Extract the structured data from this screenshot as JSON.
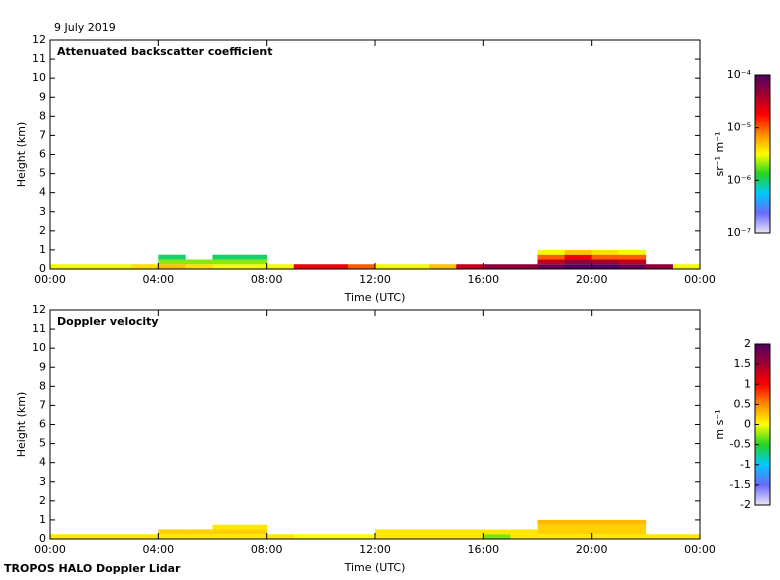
{
  "date": "9 July 2019",
  "footer": "TROPOS HALO Doppler Lidar",
  "chart_data": [
    {
      "type": "heatmap",
      "title": "Attenuated backscatter coefficient",
      "xlabel": "Time (UTC)",
      "ylabel": "Height (km)",
      "colorbar_label": "sr⁻¹ m⁻¹",
      "xlim": [
        0,
        24
      ],
      "xticks": [
        {
          "value": 0,
          "label": "00:00"
        },
        {
          "value": 4,
          "label": "04:00"
        },
        {
          "value": 8,
          "label": "08:00"
        },
        {
          "value": 12,
          "label": "12:00"
        },
        {
          "value": 16,
          "label": "16:00"
        },
        {
          "value": 20,
          "label": "20:00"
        },
        {
          "value": 24,
          "label": "00:00"
        }
      ],
      "ylim": [
        0,
        12
      ],
      "yticks": [
        0,
        1,
        2,
        3,
        4,
        5,
        6,
        7,
        8,
        9,
        10,
        11,
        12
      ],
      "clim": [
        1e-07,
        0.0001
      ],
      "clog": true,
      "cticks": [
        {
          "value": 0.0001,
          "label": "10⁻⁴"
        },
        {
          "value": 1e-05,
          "label": "10⁻⁵"
        },
        {
          "value": 1e-06,
          "label": "10⁻⁶"
        },
        {
          "value": 1e-07,
          "label": "10⁻⁷"
        }
      ],
      "colormap": [
        "#ece6f6",
        "#6a6aff",
        "#00c8ff",
        "#22d422",
        "#ffff00",
        "#ff8c00",
        "#ff0000",
        "#a00030",
        "#500060"
      ],
      "x_bins": [
        0,
        1,
        2,
        3,
        4,
        5,
        6,
        7,
        8,
        9,
        10,
        11,
        12,
        13,
        14,
        15,
        16,
        17,
        18,
        19,
        20,
        21,
        22,
        23,
        24
      ],
      "y_bins": [
        0,
        0.25,
        0.5,
        0.75,
        1
      ],
      "values": [
        [
          3e-06,
          3e-06,
          3e-06,
          4e-06,
          5e-06,
          4e-06,
          3e-06,
          3e-06,
          3e-06,
          2e-05,
          2e-05,
          1e-05,
          3e-06,
          3e-06,
          5e-06,
          3e-05,
          5e-05,
          5e-05,
          8e-05,
          0.0001,
          0.0001,
          8e-05,
          5e-05,
          3e-06
        ],
        [
          null,
          null,
          null,
          null,
          2e-06,
          2e-06,
          2e-06,
          2e-06,
          null,
          null,
          null,
          null,
          null,
          null,
          null,
          null,
          null,
          null,
          3e-05,
          5e-05,
          4e-05,
          3e-05,
          null,
          null
        ],
        [
          null,
          null,
          null,
          null,
          1e-06,
          null,
          1e-06,
          1e-06,
          null,
          null,
          null,
          null,
          null,
          null,
          null,
          null,
          null,
          null,
          1e-05,
          2e-05,
          1e-05,
          1e-05,
          null,
          null
        ],
        [
          null,
          null,
          null,
          null,
          null,
          null,
          null,
          null,
          null,
          null,
          null,
          null,
          null,
          null,
          null,
          null,
          null,
          null,
          3e-06,
          5e-06,
          4e-06,
          3e-06,
          null,
          null
        ]
      ]
    },
    {
      "type": "heatmap",
      "title": "Doppler velocity",
      "xlabel": "Time (UTC)",
      "ylabel": "Height (km)",
      "colorbar_label": "m s⁻¹",
      "xlim": [
        0,
        24
      ],
      "xticks": [
        {
          "value": 0,
          "label": "00:00"
        },
        {
          "value": 4,
          "label": "04:00"
        },
        {
          "value": 8,
          "label": "08:00"
        },
        {
          "value": 12,
          "label": "12:00"
        },
        {
          "value": 16,
          "label": "16:00"
        },
        {
          "value": 20,
          "label": "20:00"
        },
        {
          "value": 24,
          "label": "00:00"
        }
      ],
      "ylim": [
        0,
        12
      ],
      "yticks": [
        0,
        1,
        2,
        3,
        4,
        5,
        6,
        7,
        8,
        9,
        10,
        11,
        12
      ],
      "clim": [
        -2,
        2
      ],
      "clog": false,
      "cticks": [
        2,
        1.5,
        1,
        0.5,
        0,
        -0.5,
        -1,
        -1.5,
        -2
      ],
      "colormap": [
        "#ece6f6",
        "#6a6aff",
        "#00c8ff",
        "#22d422",
        "#ffff00",
        "#ff8c00",
        "#ff0000",
        "#a00030",
        "#500060"
      ],
      "x_bins": [
        0,
        1,
        2,
        3,
        4,
        5,
        6,
        7,
        8,
        9,
        10,
        11,
        12,
        13,
        14,
        15,
        16,
        17,
        18,
        19,
        20,
        21,
        22,
        23,
        24
      ],
      "y_bins": [
        0,
        0.25,
        0.5,
        0.75,
        1
      ],
      "values": [
        [
          0.1,
          0.1,
          0.1,
          0.1,
          0.1,
          0.1,
          0.1,
          0.1,
          0.1,
          0,
          0,
          0,
          0.1,
          0.1,
          0.1,
          0.1,
          -0.3,
          0.1,
          0.1,
          0.1,
          0.1,
          0.1,
          0.1,
          0.1
        ],
        [
          null,
          null,
          null,
          null,
          0.2,
          0.2,
          0.2,
          0.2,
          null,
          null,
          null,
          null,
          0.1,
          0.1,
          0.1,
          0.1,
          0.1,
          0.1,
          0.2,
          0.2,
          0.2,
          0.2,
          null,
          null
        ],
        [
          null,
          null,
          null,
          null,
          null,
          null,
          0.1,
          0.1,
          null,
          null,
          null,
          null,
          null,
          null,
          null,
          null,
          null,
          null,
          0.2,
          0.2,
          0.2,
          0.2,
          null,
          null
        ],
        [
          null,
          null,
          null,
          null,
          null,
          null,
          null,
          null,
          null,
          null,
          null,
          null,
          null,
          null,
          null,
          null,
          null,
          null,
          0.3,
          0.3,
          0.3,
          0.3,
          null,
          null
        ]
      ]
    }
  ]
}
